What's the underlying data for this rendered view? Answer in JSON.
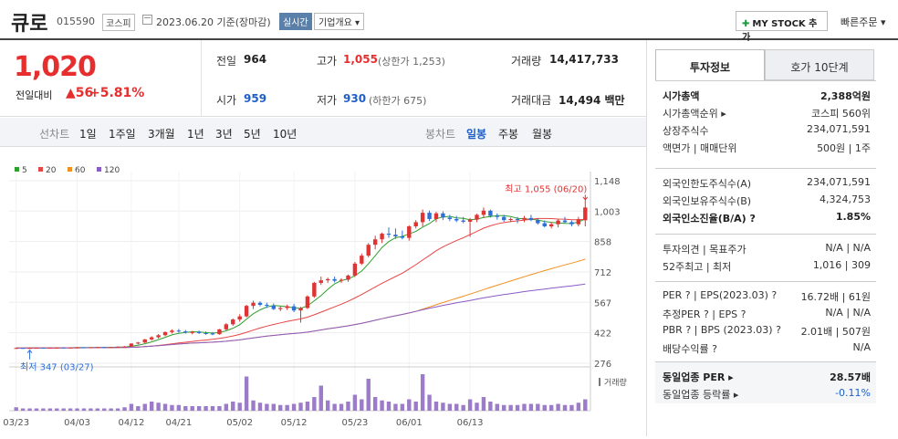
{
  "header": {
    "stock_name": "큐로",
    "stock_code": "015590",
    "market": "코스피",
    "date_text": "2023.06.20 기준(장마감)",
    "realtime": "실시간",
    "company_overview": "기업개요 ▾",
    "mystock_label": "MY STOCK 추가",
    "quick_order": "빠른주문 ▾"
  },
  "price": {
    "current": "1,020",
    "change_label": "전일대비",
    "change_value": "▲56",
    "change_rate": "+5.81%",
    "prev_close_label": "전일",
    "prev_close": "964",
    "high_label": "고가",
    "high": "1,055",
    "upper_limit": "(상한가 1,253)",
    "volume_label": "거래량",
    "volume": "14,417,733",
    "open_label": "시가",
    "open": "959",
    "low_label": "저가",
    "low": "930",
    "lower_limit": "(하한가 675)",
    "amount_label": "거래대금",
    "amount": "14,494 백만"
  },
  "period_bar": {
    "label": "선차트",
    "tabs": [
      "1일",
      "1주일",
      "3개월",
      "1년",
      "3년",
      "5년",
      "10년"
    ],
    "candle_label": "봉차트",
    "candle_tabs": [
      "일봉",
      "주봉",
      "월봉"
    ],
    "active_candle": "일봉"
  },
  "legend": [
    {
      "name": "5",
      "color": "#2ca02c"
    },
    {
      "name": "20",
      "color": "#e84545"
    },
    {
      "name": "60",
      "color": "#f0901e"
    },
    {
      "name": "120",
      "color": "#8a5bc4"
    }
  ],
  "chart_data": {
    "type": "candlestick",
    "y_ticks": [
      "1,148",
      "1,003",
      "858",
      "712",
      "567",
      "422",
      "276"
    ],
    "y_tick_values": [
      1148,
      1003,
      858,
      712,
      567,
      422,
      276
    ],
    "ylim": [
      276,
      1148
    ],
    "x_labels": [
      "03/23",
      "04/03",
      "04/12",
      "04/21",
      "05/02",
      "05/12",
      "05/23",
      "06/01",
      "06/13"
    ],
    "max_annotation": "최고 1,055 (06/20)",
    "min_annotation": "최저 347 (03/27)",
    "volume_label": "거래량",
    "ohlc": [
      [
        348,
        350,
        347,
        349
      ],
      [
        349,
        350,
        347,
        348
      ],
      [
        348,
        350,
        347,
        349
      ],
      [
        349,
        351,
        348,
        350
      ],
      [
        350,
        351,
        348,
        349
      ],
      [
        349,
        351,
        348,
        350
      ],
      [
        350,
        352,
        349,
        351
      ],
      [
        351,
        352,
        349,
        350
      ],
      [
        350,
        352,
        349,
        351
      ],
      [
        351,
        353,
        350,
        352
      ],
      [
        352,
        353,
        350,
        351
      ],
      [
        351,
        353,
        350,
        352
      ],
      [
        352,
        354,
        351,
        353
      ],
      [
        353,
        354,
        351,
        352
      ],
      [
        352,
        354,
        351,
        353
      ],
      [
        353,
        356,
        352,
        355
      ],
      [
        355,
        358,
        353,
        356
      ],
      [
        356,
        372,
        354,
        370
      ],
      [
        370,
        378,
        366,
        375
      ],
      [
        375,
        392,
        372,
        390
      ],
      [
        390,
        405,
        384,
        400
      ],
      [
        400,
        415,
        394,
        410
      ],
      [
        410,
        428,
        405,
        425
      ],
      [
        425,
        438,
        418,
        432
      ],
      [
        432,
        440,
        422,
        428
      ],
      [
        428,
        435,
        418,
        422
      ],
      [
        422,
        430,
        414,
        425
      ],
      [
        425,
        432,
        416,
        420
      ],
      [
        420,
        428,
        412,
        418
      ],
      [
        418,
        425,
        410,
        415
      ],
      [
        415,
        440,
        412,
        438
      ],
      [
        438,
        468,
        432,
        462
      ],
      [
        462,
        490,
        455,
        485
      ],
      [
        485,
        510,
        475,
        500
      ],
      [
        500,
        555,
        495,
        550
      ],
      [
        550,
        575,
        535,
        565
      ],
      [
        565,
        572,
        548,
        555
      ],
      [
        555,
        565,
        540,
        552
      ],
      [
        552,
        562,
        530,
        535
      ],
      [
        535,
        548,
        525,
        540
      ],
      [
        540,
        556,
        530,
        548
      ],
      [
        548,
        560,
        520,
        528
      ],
      [
        528,
        545,
        470,
        540
      ],
      [
        540,
        600,
        535,
        595
      ],
      [
        595,
        665,
        588,
        660
      ],
      [
        660,
        690,
        650,
        672
      ],
      [
        672,
        685,
        660,
        678
      ],
      [
        678,
        690,
        662,
        670
      ],
      [
        670,
        682,
        660,
        675
      ],
      [
        675,
        700,
        665,
        695
      ],
      [
        695,
        760,
        688,
        752
      ],
      [
        752,
        800,
        745,
        790
      ],
      [
        790,
        850,
        782,
        842
      ],
      [
        842,
        885,
        820,
        868
      ],
      [
        868,
        900,
        850,
        895
      ],
      [
        895,
        925,
        875,
        890
      ],
      [
        890,
        920,
        870,
        882
      ],
      [
        882,
        910,
        868,
        875
      ],
      [
        875,
        935,
        862,
        930
      ],
      [
        930,
        960,
        920,
        950
      ],
      [
        950,
        1010,
        930,
        995
      ],
      [
        995,
        1005,
        955,
        965
      ],
      [
        965,
        1000,
        950,
        992
      ],
      [
        992,
        1002,
        960,
        972
      ],
      [
        972,
        985,
        955,
        965
      ],
      [
        965,
        980,
        950,
        958
      ],
      [
        958,
        975,
        945,
        952
      ],
      [
        952,
        970,
        880,
        962
      ],
      [
        962,
        990,
        950,
        985
      ],
      [
        985,
        1020,
        970,
        1005
      ],
      [
        1005,
        1010,
        972,
        980
      ],
      [
        980,
        992,
        962,
        975
      ],
      [
        975,
        985,
        952,
        960
      ],
      [
        960,
        972,
        950,
        965
      ],
      [
        965,
        975,
        945,
        962
      ],
      [
        962,
        980,
        950,
        970
      ],
      [
        970,
        985,
        955,
        960
      ],
      [
        960,
        970,
        938,
        945
      ],
      [
        945,
        958,
        925,
        930
      ],
      [
        930,
        950,
        920,
        940
      ],
      [
        940,
        965,
        925,
        958
      ],
      [
        958,
        975,
        945,
        950
      ],
      [
        950,
        958,
        930,
        940
      ],
      [
        940,
        975,
        930,
        964
      ],
      [
        959,
        1055,
        930,
        1020
      ]
    ],
    "volumes": [
      3,
      2,
      2,
      2,
      2,
      2,
      2,
      2,
      2,
      2,
      2,
      2,
      2,
      2,
      2,
      2,
      3,
      6,
      4,
      6,
      8,
      7,
      6,
      5,
      5,
      4,
      4,
      4,
      4,
      4,
      4,
      6,
      8,
      7,
      30,
      9,
      7,
      6,
      6,
      5,
      5,
      6,
      7,
      8,
      12,
      22,
      9,
      6,
      6,
      8,
      14,
      10,
      28,
      12,
      9,
      8,
      6,
      6,
      10,
      8,
      32,
      14,
      8,
      7,
      6,
      6,
      5,
      10,
      7,
      12,
      8,
      6,
      5,
      5,
      5,
      6,
      6,
      6,
      5,
      5,
      6,
      5,
      5,
      7,
      10
    ]
  },
  "right_panel": {
    "tab_invest": "투자정보",
    "tab_hoga": "호가 10단계",
    "group1": [
      {
        "k": "시가총액",
        "v": "2,388억원",
        "bold": true
      },
      {
        "k": "시가총액순위 ▸",
        "v": "코스피 560위"
      },
      {
        "k": "상장주식수",
        "v": "234,071,591"
      },
      {
        "k": "액면가 | 매매단위",
        "v": "500원 | 1주"
      }
    ],
    "group2": [
      {
        "k": "외국인한도주식수(A)",
        "v": "234,071,591"
      },
      {
        "k": "외국인보유주식수(B)",
        "v": "4,324,753"
      },
      {
        "k": "외국인소진율(B/A) ?",
        "v": "1.85%",
        "bold": true
      }
    ],
    "group3": [
      {
        "k": "투자의견 | 목표주가",
        "v": "N/A | N/A"
      },
      {
        "k": "52주최고 | 최저",
        "v": "1,016 | 309"
      }
    ],
    "group4": [
      {
        "k": "PER ? | EPS(2023.03) ?",
        "v": "16.72배 | 61원"
      },
      {
        "k": "추정PER ? | EPS ?",
        "v": "N/A | N/A"
      },
      {
        "k": "PBR ? | BPS (2023.03) ?",
        "v": "2.01배 | 507원"
      },
      {
        "k": "배당수익률 ?",
        "v": "N/A"
      }
    ],
    "group5": [
      {
        "k": "동일업종 PER ▸",
        "v": "28.57배",
        "bold": true
      },
      {
        "k": "동일업종 등락률 ▸",
        "v": "-0.11%"
      }
    ]
  }
}
